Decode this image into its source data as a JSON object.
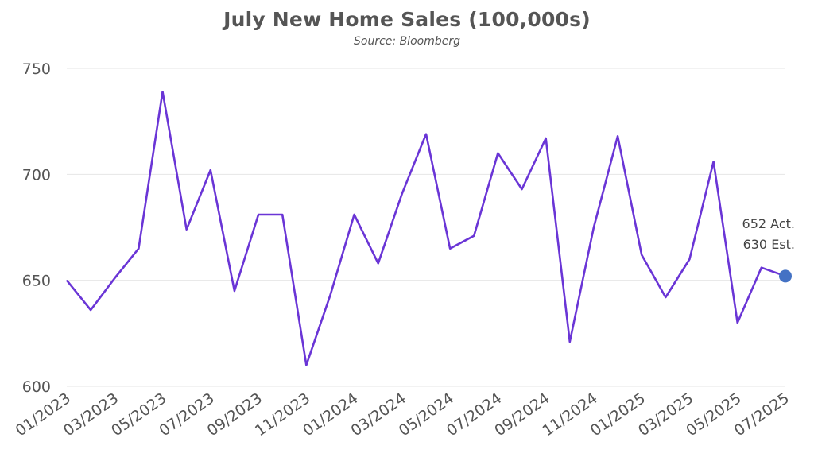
{
  "chart_data": {
    "type": "line",
    "title": "July New Home Sales (100,000s)",
    "subtitle": "Source: Bloomberg",
    "xlabel": "",
    "ylabel": "",
    "ylim": [
      600,
      750
    ],
    "yticks": [
      600,
      650,
      700,
      750
    ],
    "x": [
      "01/2023",
      "02/2023",
      "03/2023",
      "04/2023",
      "05/2023",
      "06/2023",
      "07/2023",
      "08/2023",
      "09/2023",
      "10/2023",
      "11/2023",
      "12/2023",
      "01/2024",
      "02/2024",
      "03/2024",
      "04/2024",
      "05/2024",
      "06/2024",
      "07/2024",
      "08/2024",
      "09/2024",
      "10/2024",
      "11/2024",
      "12/2024",
      "01/2025",
      "02/2025",
      "03/2025",
      "04/2025",
      "05/2025",
      "06/2025",
      "07/2025"
    ],
    "xtick_labels": [
      "01/2023",
      "03/2023",
      "05/2023",
      "07/2023",
      "09/2023",
      "11/2023",
      "01/2024",
      "03/2024",
      "05/2024",
      "07/2024",
      "09/2024",
      "11/2024",
      "01/2025",
      "03/2025",
      "05/2025",
      "07/2025"
    ],
    "series": [
      {
        "values": [
          650,
          636,
          651,
          665,
          739,
          674,
          702,
          645,
          681,
          681,
          610,
          643,
          681,
          658,
          691,
          719,
          665,
          671,
          710,
          693,
          717,
          621,
          675,
          718,
          662,
          642,
          660,
          706,
          630,
          656,
          652
        ],
        "color": "#6a35d6"
      }
    ],
    "highlight": {
      "value": 652,
      "color": "#4472c4"
    },
    "annotation": {
      "line1": "652 Act.",
      "line2": "630 Est."
    },
    "grid": true,
    "legend": "none"
  }
}
